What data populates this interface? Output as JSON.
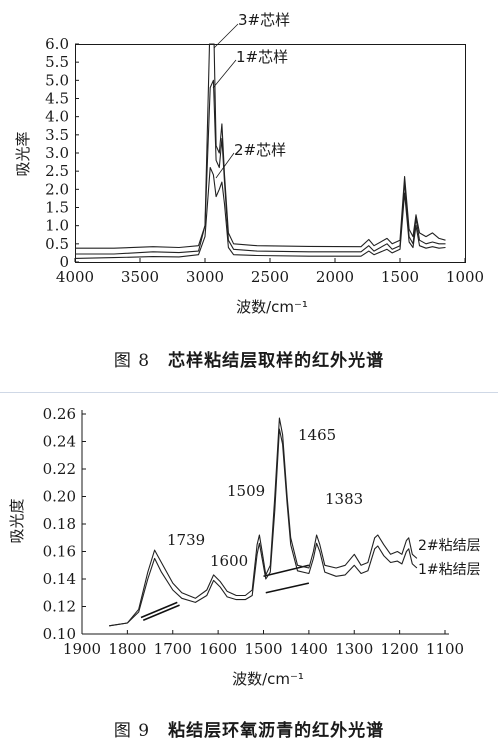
{
  "chart_data": [
    {
      "type": "line",
      "ylabel": "吸光率",
      "xlabel": "波数/cm⁻¹",
      "xlim": [
        4000,
        1000
      ],
      "ylim": [
        0,
        6.0
      ],
      "x_ticks": [
        "4000",
        "3500",
        "3000",
        "2500",
        "2000",
        "1500",
        "1000"
      ],
      "y_ticks": [
        "0",
        "0.5",
        "1.0",
        "1.5",
        "2.0",
        "2.5",
        "3.0",
        "3.5",
        "4.0",
        "4.5",
        "5.0",
        "5.5",
        "6.0"
      ],
      "annotations": [
        "3#芯样",
        "1#芯样",
        "2#芯样"
      ],
      "series": [
        {
          "name": "3#芯样",
          "points": [
            [
              4000,
              0.38
            ],
            [
              3700,
              0.38
            ],
            [
              3400,
              0.42
            ],
            [
              3200,
              0.4
            ],
            [
              3050,
              0.45
            ],
            [
              3000,
              1.0
            ],
            [
              2965,
              6.0
            ],
            [
              2930,
              6.0
            ],
            [
              2915,
              3.2
            ],
            [
              2890,
              3.0
            ],
            [
              2870,
              3.8
            ],
            [
              2850,
              2.4
            ],
            [
              2820,
              0.8
            ],
            [
              2780,
              0.5
            ],
            [
              2600,
              0.45
            ],
            [
              2200,
              0.43
            ],
            [
              1800,
              0.42
            ],
            [
              1740,
              0.62
            ],
            [
              1700,
              0.45
            ],
            [
              1600,
              0.65
            ],
            [
              1560,
              0.5
            ],
            [
              1500,
              0.6
            ],
            [
              1465,
              2.35
            ],
            [
              1430,
              0.9
            ],
            [
              1400,
              0.7
            ],
            [
              1377,
              1.3
            ],
            [
              1350,
              0.8
            ],
            [
              1300,
              0.7
            ],
            [
              1250,
              0.8
            ],
            [
              1200,
              0.65
            ],
            [
              1150,
              0.6
            ]
          ]
        },
        {
          "name": "1#芯样",
          "points": [
            [
              4000,
              0.22
            ],
            [
              3700,
              0.22
            ],
            [
              3400,
              0.28
            ],
            [
              3200,
              0.26
            ],
            [
              3050,
              0.3
            ],
            [
              3000,
              1.0
            ],
            [
              2960,
              4.8
            ],
            [
              2935,
              5.0
            ],
            [
              2915,
              2.8
            ],
            [
              2890,
              2.6
            ],
            [
              2870,
              3.4
            ],
            [
              2850,
              2.2
            ],
            [
              2820,
              0.6
            ],
            [
              2780,
              0.35
            ],
            [
              2600,
              0.3
            ],
            [
              2200,
              0.28
            ],
            [
              1800,
              0.28
            ],
            [
              1740,
              0.45
            ],
            [
              1700,
              0.3
            ],
            [
              1600,
              0.5
            ],
            [
              1560,
              0.35
            ],
            [
              1500,
              0.45
            ],
            [
              1465,
              2.2
            ],
            [
              1430,
              0.7
            ],
            [
              1400,
              0.5
            ],
            [
              1377,
              1.2
            ],
            [
              1350,
              0.6
            ],
            [
              1300,
              0.5
            ],
            [
              1250,
              0.55
            ],
            [
              1200,
              0.5
            ],
            [
              1150,
              0.5
            ]
          ]
        },
        {
          "name": "2#芯样",
          "points": [
            [
              4000,
              0.1
            ],
            [
              3700,
              0.12
            ],
            [
              3400,
              0.15
            ],
            [
              3200,
              0.14
            ],
            [
              3050,
              0.2
            ],
            [
              3000,
              0.7
            ],
            [
              2960,
              2.6
            ],
            [
              2935,
              2.4
            ],
            [
              2915,
              1.8
            ],
            [
              2890,
              2.0
            ],
            [
              2870,
              2.2
            ],
            [
              2850,
              1.6
            ],
            [
              2820,
              0.4
            ],
            [
              2780,
              0.2
            ],
            [
              2600,
              0.18
            ],
            [
              2200,
              0.16
            ],
            [
              1800,
              0.16
            ],
            [
              1740,
              0.3
            ],
            [
              1700,
              0.2
            ],
            [
              1600,
              0.35
            ],
            [
              1560,
              0.25
            ],
            [
              1500,
              0.35
            ],
            [
              1465,
              1.9
            ],
            [
              1430,
              0.55
            ],
            [
              1400,
              0.4
            ],
            [
              1377,
              1.0
            ],
            [
              1350,
              0.45
            ],
            [
              1300,
              0.38
            ],
            [
              1250,
              0.42
            ],
            [
              1200,
              0.38
            ],
            [
              1150,
              0.4
            ]
          ]
        }
      ]
    },
    {
      "type": "line",
      "ylabel": "吸光度",
      "xlabel": "波数/cm⁻¹",
      "xlim": [
        1900,
        1100
      ],
      "ylim": [
        0.1,
        0.26
      ],
      "x_ticks": [
        "1900",
        "1800",
        "1700",
        "1600",
        "1500",
        "1400",
        "1300",
        "1200",
        "1100"
      ],
      "y_ticks": [
        "0.10",
        "0.12",
        "0.14",
        "0.16",
        "0.18",
        "0.20",
        "0.22",
        "0.24",
        "0.26"
      ],
      "peak_labels": [
        "1739",
        "1600",
        "1509",
        "1465",
        "1383"
      ],
      "series": [
        {
          "name": "2#粘结层",
          "points": [
            [
              1840,
              0.106
            ],
            [
              1800,
              0.108
            ],
            [
              1775,
              0.118
            ],
            [
              1755,
              0.145
            ],
            [
              1740,
              0.161
            ],
            [
              1725,
              0.152
            ],
            [
              1700,
              0.137
            ],
            [
              1680,
              0.13
            ],
            [
              1650,
              0.126
            ],
            [
              1625,
              0.132
            ],
            [
              1610,
              0.143
            ],
            [
              1595,
              0.138
            ],
            [
              1580,
              0.131
            ],
            [
              1560,
              0.128
            ],
            [
              1540,
              0.128
            ],
            [
              1525,
              0.132
            ],
            [
              1514,
              0.165
            ],
            [
              1509,
              0.172
            ],
            [
              1503,
              0.16
            ],
            [
              1495,
              0.143
            ],
            [
              1485,
              0.15
            ],
            [
              1475,
              0.2
            ],
            [
              1465,
              0.257
            ],
            [
              1458,
              0.245
            ],
            [
              1448,
              0.2
            ],
            [
              1440,
              0.17
            ],
            [
              1425,
              0.15
            ],
            [
              1400,
              0.148
            ],
            [
              1390,
              0.16
            ],
            [
              1383,
              0.172
            ],
            [
              1376,
              0.165
            ],
            [
              1365,
              0.15
            ],
            [
              1340,
              0.148
            ],
            [
              1320,
              0.15
            ],
            [
              1300,
              0.158
            ],
            [
              1285,
              0.15
            ],
            [
              1270,
              0.152
            ],
            [
              1255,
              0.17
            ],
            [
              1248,
              0.172
            ],
            [
              1235,
              0.165
            ],
            [
              1220,
              0.158
            ],
            [
              1205,
              0.16
            ],
            [
              1195,
              0.158
            ],
            [
              1185,
              0.168
            ],
            [
              1180,
              0.17
            ],
            [
              1172,
              0.158
            ],
            [
              1162,
              0.155
            ]
          ]
        },
        {
          "name": "1#粘结层",
          "points": [
            [
              1840,
              0.106
            ],
            [
              1800,
              0.108
            ],
            [
              1775,
              0.116
            ],
            [
              1755,
              0.14
            ],
            [
              1740,
              0.155
            ],
            [
              1725,
              0.145
            ],
            [
              1700,
              0.132
            ],
            [
              1680,
              0.126
            ],
            [
              1650,
              0.123
            ],
            [
              1625,
              0.128
            ],
            [
              1610,
              0.139
            ],
            [
              1595,
              0.134
            ],
            [
              1580,
              0.127
            ],
            [
              1560,
              0.125
            ],
            [
              1540,
              0.125
            ],
            [
              1525,
              0.128
            ],
            [
              1514,
              0.158
            ],
            [
              1509,
              0.166
            ],
            [
              1503,
              0.155
            ],
            [
              1495,
              0.14
            ],
            [
              1485,
              0.145
            ],
            [
              1475,
              0.19
            ],
            [
              1465,
              0.249
            ],
            [
              1458,
              0.238
            ],
            [
              1448,
              0.195
            ],
            [
              1440,
              0.165
            ],
            [
              1425,
              0.146
            ],
            [
              1400,
              0.144
            ],
            [
              1390,
              0.155
            ],
            [
              1383,
              0.166
            ],
            [
              1376,
              0.16
            ],
            [
              1365,
              0.145
            ],
            [
              1340,
              0.142
            ],
            [
              1320,
              0.143
            ],
            [
              1300,
              0.15
            ],
            [
              1285,
              0.144
            ],
            [
              1270,
              0.146
            ],
            [
              1255,
              0.162
            ],
            [
              1248,
              0.164
            ],
            [
              1235,
              0.157
            ],
            [
              1220,
              0.152
            ],
            [
              1205,
              0.153
            ],
            [
              1195,
              0.151
            ],
            [
              1185,
              0.16
            ],
            [
              1180,
              0.162
            ],
            [
              1172,
              0.151
            ],
            [
              1162,
              0.148
            ]
          ]
        }
      ],
      "baselines": [
        {
          "points": [
            [
              1770,
              0.112
            ],
            [
              1690,
              0.123
            ]
          ]
        },
        {
          "points": [
            [
              1765,
              0.11
            ],
            [
              1685,
              0.121
            ]
          ]
        },
        {
          "points": [
            [
              1500,
              0.142
            ],
            [
              1400,
              0.15
            ]
          ]
        },
        {
          "points": [
            [
              1495,
              0.13
            ],
            [
              1400,
              0.137
            ]
          ]
        }
      ]
    }
  ],
  "captions": {
    "fig8_number": "图 8",
    "fig8_title": "芯样粘结层取样的红外光谱",
    "fig9_number": "图 9",
    "fig9_title": "粘结层环氧沥青的红外光谱"
  },
  "colors": {
    "axis": "#1a1a1a",
    "curve": "#222222",
    "rule": "#cfd8e6"
  }
}
